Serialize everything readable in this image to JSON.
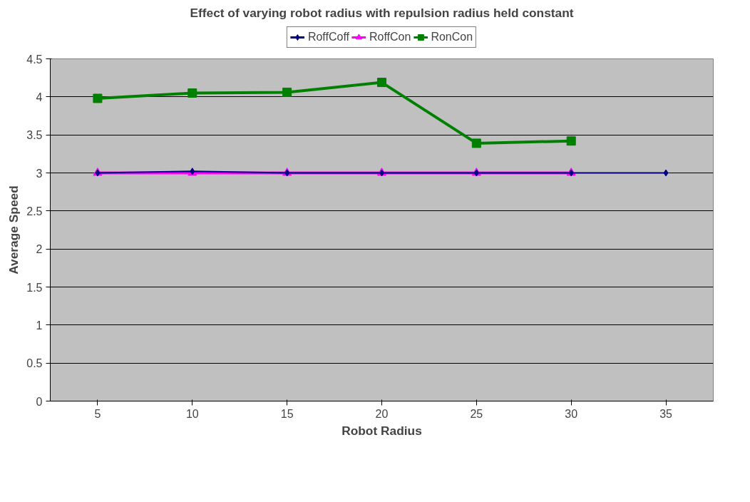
{
  "chart_data": {
    "type": "line",
    "title": "Effect of varying robot radius with repulsion radius held constant",
    "xlabel": "Robot Radius",
    "ylabel": "Average Speed",
    "categories": [
      "5",
      "10",
      "15",
      "20",
      "25",
      "30",
      "35"
    ],
    "series": [
      {
        "name": "RoffCoff",
        "color": "#000080",
        "marker": "diamond",
        "values": [
          3,
          3.02,
          3,
          3,
          3,
          3,
          3
        ]
      },
      {
        "name": "RoffCon",
        "color": "#ff00ff",
        "marker": "triangle",
        "values": [
          3,
          3,
          3,
          3,
          3,
          3,
          null
        ]
      },
      {
        "name": "RonCon",
        "color": "#008000",
        "marker": "square",
        "values": [
          3.98,
          4.05,
          4.06,
          4.19,
          3.39,
          3.42,
          null
        ]
      }
    ],
    "ylim": [
      0,
      4.5
    ],
    "yticks": [
      0,
      0.5,
      1,
      1.5,
      2,
      2.5,
      3,
      3.5,
      4,
      4.5
    ],
    "grid": "y",
    "legend": "top",
    "line_style": "solid"
  }
}
